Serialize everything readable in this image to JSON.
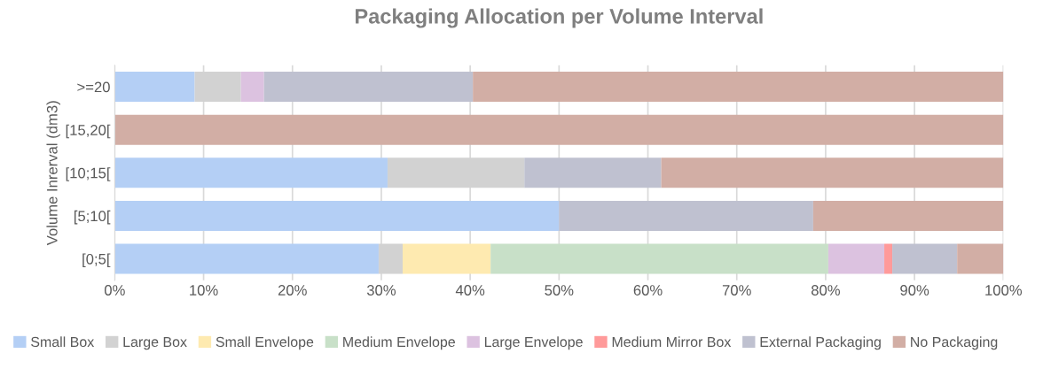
{
  "chart_data": {
    "type": "bar",
    "orientation": "horizontal",
    "stacked": true,
    "title": "Packaging Allocation per Volume Interval",
    "ylabel": "Volume Inrerval (dm3)",
    "categories": [
      ">=20",
      "[15,20[",
      "[10;15[",
      "[5;10[",
      "[0;5["
    ],
    "series": [
      {
        "name": "Small Box",
        "color": "#b4cff5",
        "values": [
          9.0,
          null,
          30.7,
          50.0,
          29.7
        ]
      },
      {
        "name": "Large Box",
        "color": "#d2d2d2",
        "values": [
          5.2,
          null,
          15.4,
          null,
          2.7
        ]
      },
      {
        "name": "Small Envelope",
        "color": "#feeab0",
        "values": [
          null,
          null,
          null,
          null,
          9.9
        ]
      },
      {
        "name": "Medium Envelope",
        "color": "#c8e0c8",
        "values": [
          null,
          null,
          null,
          null,
          38.0
        ]
      },
      {
        "name": "Large Envelope",
        "color": "#dcc2e0",
        "values": [
          2.6,
          null,
          null,
          null,
          6.3
        ]
      },
      {
        "name": "Medium Mirror Box",
        "color": "#ff9a9a",
        "values": [
          null,
          null,
          null,
          null,
          0.9
        ]
      },
      {
        "name": "External Packaging",
        "color": "#bfc1d0",
        "values": [
          23.5,
          null,
          15.4,
          28.6,
          7.3
        ]
      },
      {
        "name": "No Packaging",
        "color": "#d2aea5",
        "values": [
          59.7,
          100,
          38.5,
          21.4,
          5.2
        ]
      }
    ],
    "xlim": [
      0,
      100
    ],
    "xticks": [
      {
        "value": 0,
        "label": "0%"
      },
      {
        "value": 10,
        "label": "10%"
      },
      {
        "value": 20,
        "label": "20%"
      },
      {
        "value": 30,
        "label": "30%"
      },
      {
        "value": 40,
        "label": "40%"
      },
      {
        "value": 50,
        "label": "50%"
      },
      {
        "value": 60,
        "label": "60%"
      },
      {
        "value": 70,
        "label": "70%"
      },
      {
        "value": 80,
        "label": "80%"
      },
      {
        "value": 90,
        "label": "90%"
      },
      {
        "value": 100,
        "label": "100%"
      }
    ],
    "grid": "x",
    "legend": "bottom"
  }
}
